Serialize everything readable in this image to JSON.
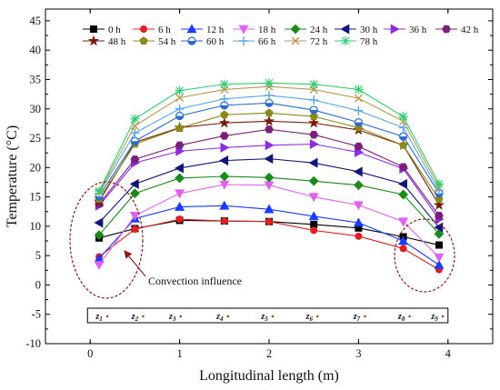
{
  "chart_data": {
    "type": "line",
    "title": "",
    "xlabel": "Longitudinal length (m)",
    "ylabel": "Temperature (°C)",
    "xlim": [
      -0.5,
      4.5
    ],
    "ylim": [
      -10,
      47
    ],
    "xticks": [
      0,
      1,
      2,
      3,
      4
    ],
    "yticks": [
      -10,
      -5,
      0,
      5,
      10,
      15,
      20,
      25,
      30,
      35,
      40,
      45
    ],
    "x": [
      0.1,
      0.5,
      1.0,
      1.5,
      2.0,
      2.5,
      3.0,
      3.5,
      3.9
    ],
    "legend_position": "top",
    "series": [
      {
        "name": "0 h",
        "color": "#000000",
        "marker": "square",
        "values": [
          8.0,
          9.6,
          11.0,
          10.9,
          10.8,
          10.3,
          9.7,
          8.2,
          6.8
        ]
      },
      {
        "name": "6 h",
        "color": "#e02020",
        "marker": "circle",
        "values": [
          4.8,
          9.5,
          11.2,
          10.9,
          10.8,
          9.3,
          8.3,
          6.2,
          2.6
        ]
      },
      {
        "name": "12 h",
        "color": "#1a3cff",
        "marker": "triangle-up",
        "values": [
          4.5,
          11.3,
          13.3,
          13.5,
          12.9,
          11.7,
          10.6,
          7.5,
          3.4
        ]
      },
      {
        "name": "18 h",
        "color": "#e060f0",
        "marker": "triangle-down",
        "values": [
          3.4,
          11.8,
          15.6,
          17.1,
          17.0,
          15.0,
          13.6,
          10.8,
          4.7
        ]
      },
      {
        "name": "24 h",
        "color": "#1a8a1a",
        "marker": "diamond",
        "values": [
          8.5,
          15.6,
          18.2,
          18.5,
          18.3,
          17.7,
          17.0,
          15.4,
          8.7
        ]
      },
      {
        "name": "30 h",
        "color": "#14147a",
        "marker": "triangle-left",
        "values": [
          10.6,
          17.2,
          19.9,
          21.2,
          21.5,
          20.8,
          19.3,
          17.2,
          9.8
        ]
      },
      {
        "name": "36 h",
        "color": "#8b2be2",
        "marker": "triangle-right",
        "values": [
          13.5,
          20.8,
          22.8,
          23.4,
          23.8,
          24.0,
          22.6,
          19.8,
          11.2
        ]
      },
      {
        "name": "42 h",
        "color": "#7b1f7b",
        "marker": "hexagon",
        "values": [
          13.8,
          21.4,
          23.8,
          25.4,
          26.5,
          25.6,
          23.6,
          20.1,
          11.8
        ]
      },
      {
        "name": "48 h",
        "color": "#7a1a0a",
        "marker": "star",
        "values": [
          14.2,
          24.3,
          26.8,
          27.6,
          27.9,
          27.6,
          26.4,
          23.8,
          13.6
        ]
      },
      {
        "name": "54 h",
        "color": "#8a8a1a",
        "marker": "pentagon",
        "values": [
          14.6,
          24.0,
          26.7,
          29.0,
          29.3,
          28.7,
          26.8,
          23.8,
          14.6
        ]
      },
      {
        "name": "60 h",
        "color": "#2a6ad0",
        "marker": "circle-half",
        "values": [
          15.1,
          24.5,
          28.8,
          30.6,
          31.0,
          29.8,
          27.7,
          25.3,
          15.6
        ]
      },
      {
        "name": "66 h",
        "color": "#5aa6e6",
        "marker": "plus",
        "values": [
          15.6,
          25.9,
          30.0,
          31.7,
          32.3,
          31.5,
          29.7,
          26.8,
          16.1
        ]
      },
      {
        "name": "72 h",
        "color": "#b89a50",
        "marker": "cross",
        "values": [
          15.8,
          27.1,
          31.9,
          33.3,
          33.8,
          33.3,
          31.8,
          27.9,
          16.6
        ]
      },
      {
        "name": "78 h",
        "color": "#2ecc71",
        "marker": "asterisk",
        "values": [
          16.0,
          28.3,
          33.1,
          34.2,
          34.4,
          34.2,
          33.3,
          28.7,
          17.2
        ]
      }
    ],
    "annotations": {
      "convection_text": "Convection influence",
      "zones": [
        "z1",
        "z2",
        "z3",
        "z4",
        "z5",
        "z6",
        "z7",
        "z8",
        "z9"
      ]
    }
  }
}
